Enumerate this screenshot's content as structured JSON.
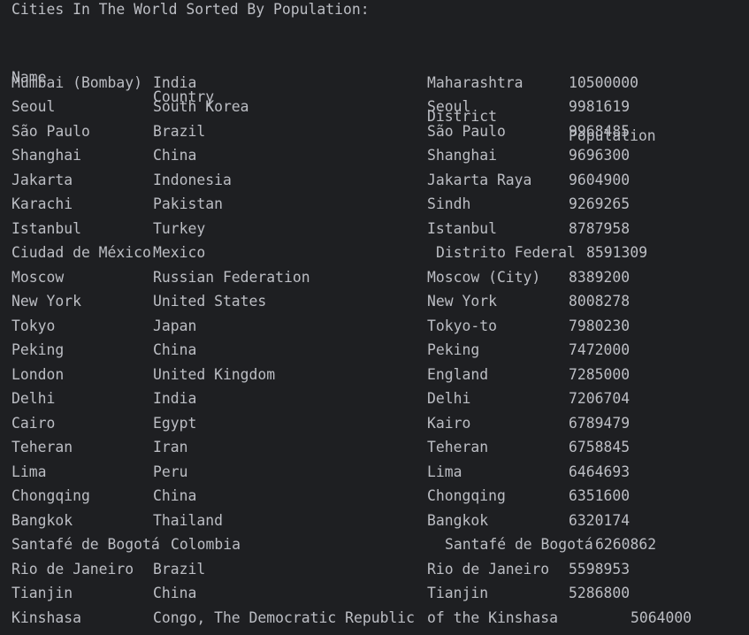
{
  "console": {
    "title": "Cities In The World Sorted By Population:",
    "headers": {
      "name": "Name",
      "country": "Country",
      "district": "District",
      "population": "Population"
    },
    "rows": [
      {
        "name": "Mumbai (Bombay)",
        "country": "India",
        "district": "Maharashtra",
        "population": "10500000"
      },
      {
        "name": "Seoul",
        "country": "South Korea",
        "district": "Seoul",
        "population": "9981619"
      },
      {
        "name": "São Paulo",
        "country": "Brazil",
        "district": "São Paulo",
        "population": "9968485"
      },
      {
        "name": "Shanghai",
        "country": "China",
        "district": "Shanghai",
        "population": "9696300"
      },
      {
        "name": "Jakarta",
        "country": "Indonesia",
        "district": "Jakarta Raya",
        "population": "9604900"
      },
      {
        "name": "Karachi",
        "country": "Pakistan",
        "district": "Sindh",
        "population": "9269265"
      },
      {
        "name": "Istanbul",
        "country": "Turkey",
        "district": "Istanbul",
        "population": "8787958"
      },
      {
        "name": "Ciudad de México",
        "country": "Mexico",
        "district": "Distrito Federal",
        "population": "8591309"
      },
      {
        "name": "Moscow",
        "country": "Russian Federation",
        "district": "Moscow (City)",
        "population": "8389200"
      },
      {
        "name": "New York",
        "country": "United States",
        "district": "New York",
        "population": "8008278"
      },
      {
        "name": "Tokyo",
        "country": "Japan",
        "district": "Tokyo-to",
        "population": "7980230"
      },
      {
        "name": "Peking",
        "country": "China",
        "district": "Peking",
        "population": "7472000"
      },
      {
        "name": "London",
        "country": "United Kingdom",
        "district": "England",
        "population": "7285000"
      },
      {
        "name": "Delhi",
        "country": "India",
        "district": "Delhi",
        "population": "7206704"
      },
      {
        "name": "Cairo",
        "country": "Egypt",
        "district": "Kairo",
        "population": "6789479"
      },
      {
        "name": "Teheran",
        "country": "Iran",
        "district": "Teheran",
        "population": "6758845"
      },
      {
        "name": "Lima",
        "country": "Peru",
        "district": "Lima",
        "population": "6464693"
      },
      {
        "name": "Chongqing",
        "country": "China",
        "district": "Chongqing",
        "population": "6351600"
      },
      {
        "name": "Bangkok",
        "country": "Thailand",
        "district": "Bangkok",
        "population": "6320174"
      },
      {
        "name": "Santafé de Bogotá",
        "country": "Colombia",
        "district": "Santafé de Bogotá",
        "population": "6260862"
      },
      {
        "name": "Rio de Janeiro",
        "country": "Brazil",
        "district": "Rio de Janeiro",
        "population": "5598953"
      },
      {
        "name": "Tianjin",
        "country": "China",
        "district": "Tianjin",
        "population": "5286800"
      },
      {
        "name": "Kinshasa",
        "country": "Congo, The Democratic Republic of the Congo",
        "district": "Kinshasa",
        "population": "5064000"
      }
    ]
  }
}
